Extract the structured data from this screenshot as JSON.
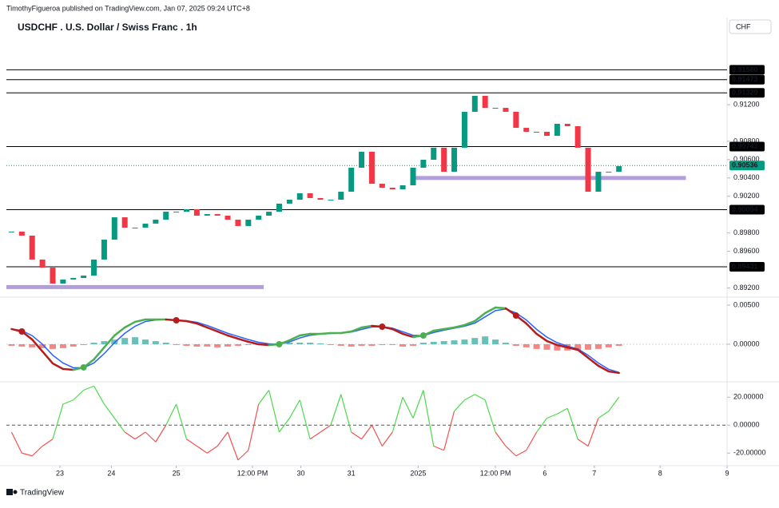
{
  "header": {
    "published": "TimothyFigueroa published on TradingView.com, Jan 07, 2025 09:24 UTC+8",
    "title": "USDCHF . U.S. Dollar / Swiss Franc . 1h",
    "currency": "CHF",
    "brand": "TradingView"
  },
  "chart_data": [
    {
      "type": "candlestick",
      "closes": [
        0.89815,
        0.89771,
        0.8951,
        0.89422,
        0.89248,
        0.89292,
        0.89309,
        0.89335,
        0.8951,
        0.89727,
        0.89971,
        0.89858,
        0.89858,
        0.89902,
        0.89945,
        0.90032,
        0.90032,
        0.90059,
        0.89989,
        0.90006,
        0.89989,
        0.89945,
        0.89876,
        0.89945,
        0.89989,
        0.90032,
        0.9012,
        0.90163,
        0.90233,
        0.90181,
        0.90163,
        0.90163,
        0.9025,
        0.90512,
        0.90686,
        0.90337,
        0.90294,
        0.90276,
        0.9032,
        0.90512,
        0.90599,
        0.9073,
        0.90468,
        0.9073,
        0.91122,
        0.91296,
        0.91165,
        0.91165,
        0.91122,
        0.90947,
        0.90904,
        0.90904,
        0.9086,
        0.90991,
        0.90965,
        0.9073,
        0.9025,
        0.90468,
        0.90468,
        0.90529
      ],
      "up_color": "#089981",
      "down_color": "#f23645",
      "xlim": [
        0,
        70
      ],
      "ylim": [
        0.891,
        0.9215
      ],
      "xticks": [
        {
          "value": 5.2,
          "label": "23"
        },
        {
          "value": 10.2,
          "label": "24"
        },
        {
          "value": 16.5,
          "label": "25"
        },
        {
          "value": 23.9,
          "label": "12:00 PM"
        },
        {
          "value": 28.6,
          "label": "30"
        },
        {
          "value": 33.5,
          "label": "31"
        },
        {
          "value": 40,
          "label": "2025"
        },
        {
          "value": 47.5,
          "label": "12:00 PM"
        },
        {
          "value": 52.3,
          "label": "6"
        },
        {
          "value": 57.1,
          "label": "7"
        },
        {
          "value": 63.5,
          "label": "8"
        },
        {
          "value": 70,
          "label": "9"
        }
      ],
      "yticks": [
        {
          "value": 0.892,
          "label": "0.89200"
        },
        {
          "value": 0.896,
          "label": "0.89600"
        },
        {
          "value": 0.898,
          "label": "0.89800"
        },
        {
          "value": 0.902,
          "label": "0.90200"
        },
        {
          "value": 0.904,
          "label": "0.90400"
        },
        {
          "value": 0.906,
          "label": "0.90600"
        },
        {
          "value": 0.908,
          "label": "0.90800"
        },
        {
          "value": 0.912,
          "label": "0.91200"
        }
      ],
      "levels": [
        {
          "value": 0.9158,
          "label": "0.91580"
        },
        {
          "value": 0.91473,
          "label": "0.91473"
        },
        {
          "value": 0.91329,
          "label": "0.91329"
        },
        {
          "value": 0.90743,
          "label": "0.90743"
        },
        {
          "value": 0.90054,
          "label": "0.90054"
        },
        {
          "value": 0.89431,
          "label": "0.89431"
        }
      ],
      "last_price": {
        "value": 0.90536,
        "label": "0.90536",
        "color": "#089981"
      },
      "zones": [
        {
          "value": 0.8921,
          "start": 0,
          "end": 25
        },
        {
          "value": 0.904,
          "start": 39.7,
          "end": 66
        }
      ],
      "zone_color": "#b39ddb"
    },
    {
      "type": "macd",
      "main": [
        0.00194,
        0.00163,
        0.00061,
        -0.00092,
        -0.00245,
        -0.00316,
        -0.00327,
        -0.00296,
        -0.00194,
        -0.00041,
        0.00112,
        0.00214,
        0.00286,
        0.00316,
        0.00316,
        0.00316,
        0.00306,
        0.00296,
        0.00265,
        0.00214,
        0.00163,
        0.00112,
        0.00071,
        0.00031,
        0,
        -0.0001,
        0,
        0.00051,
        0.00112,
        0.00133,
        0.00133,
        0.00143,
        0.00143,
        0.00163,
        0.00214,
        0.00235,
        0.00224,
        0.00194,
        0.00133,
        0.00092,
        0.00112,
        0.00173,
        0.00194,
        0.00214,
        0.00245,
        0.00296,
        0.00398,
        0.00469,
        0.00459,
        0.00367,
        0.00265,
        0.00133,
        0.00041,
        -0.0001,
        -0.00041,
        -0.00071,
        -0.00173,
        -0.00276,
        -0.00347,
        -0.00367
      ],
      "signal": [
        0.00194,
        0.00175,
        0.0011,
        0,
        -0.0014,
        -0.0024,
        -0.003,
        -0.003,
        -0.0024,
        -0.0012,
        0.0002,
        0.0014,
        0.0023,
        0.0029,
        0.0031,
        0.00316,
        0.0031,
        0.003,
        0.0028,
        0.0024,
        0.0019,
        0.0014,
        0.001,
        0.0006,
        0.00025,
        5e-05,
        0,
        0.0003,
        0.0008,
        0.00115,
        0.0013,
        0.00138,
        0.00143,
        0.00155,
        0.0019,
        0.0022,
        0.00225,
        0.00205,
        0.0016,
        0.00115,
        0.0011,
        0.0015,
        0.0018,
        0.00205,
        0.0023,
        0.0027,
        0.0035,
        0.0043,
        0.0045,
        0.004,
        0.0031,
        0.0019,
        0.0009,
        0.0002,
        -0.00025,
        -0.0006,
        -0.0014,
        -0.0024,
        -0.0032,
        -0.0036
      ],
      "histogram": [
        -0.0002,
        -0.0003,
        -0.0004,
        -0.0005,
        -0.0006,
        -0.0005,
        -0.0003,
        -0.0001,
        0.0002,
        0.0004,
        0.0006,
        0.0008,
        0.0009,
        0.0006,
        0.0004,
        0.0002,
        -0.0001,
        -0.0002,
        -0.0003,
        -0.0003,
        -0.0004,
        -0.0003,
        -0.0002,
        -0.0001,
        -0.0001,
        0.0001,
        0.0002,
        0.0002,
        0.0002,
        0.0002,
        0.0001,
        -0.0001,
        -0.0002,
        -0.0003,
        -0.0002,
        -0.0002,
        -0.0001,
        -0.0001,
        -0.0003,
        -0.0002,
        0.0002,
        0.0003,
        0.0004,
        0.0005,
        0.0006,
        0.0008,
        0.001,
        0.0006,
        0.0002,
        -0.0002,
        -0.0004,
        -0.0006,
        -0.0007,
        -0.0008,
        -0.0008,
        -0.0008,
        -0.0007,
        -0.0006,
        -0.0004,
        -0.0002
      ],
      "up_color": "#4caf50",
      "down_color": "#b71c1c",
      "signal_color": "#2962ff",
      "hist_up_color": "#26a69a",
      "hist_down_color": "#ef5350",
      "ylim": [
        -0.0048,
        0.00602
      ],
      "yticks": [
        {
          "value": 0.005,
          "label": "0.00500"
        },
        {
          "value": 0,
          "label": "0.00000"
        }
      ]
    },
    {
      "type": "oscillator",
      "values": [
        -5,
        -20,
        -22,
        -15,
        -10,
        15,
        18,
        25,
        28,
        15,
        5,
        -5,
        -10,
        -5,
        -12,
        0,
        15,
        -10,
        -15,
        -20,
        -15,
        -5,
        -25,
        -18,
        15,
        25,
        -5,
        5,
        18,
        -10,
        -5,
        0,
        22,
        -5,
        -10,
        0,
        -15,
        -5,
        20,
        5,
        25,
        -15,
        -18,
        10,
        18,
        22,
        18,
        -5,
        -15,
        -22,
        -18,
        -5,
        5,
        8,
        12,
        -10,
        -15,
        5,
        10,
        20
      ],
      "up_color": "#4cd94c",
      "down_color": "#f0524f",
      "ylim": [
        -29,
        31
      ],
      "yticks": [
        {
          "value": 20,
          "label": "20.00000"
        },
        {
          "value": 0,
          "label": "0.00000"
        },
        {
          "value": -20,
          "label": "-20.00000"
        }
      ]
    }
  ]
}
